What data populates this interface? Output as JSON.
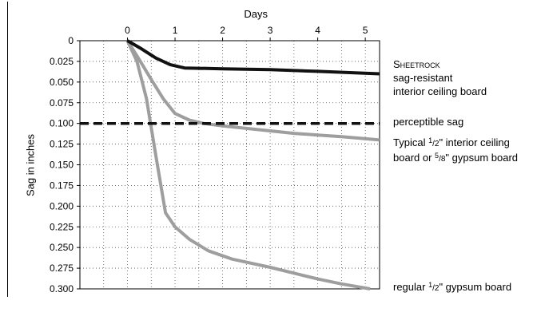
{
  "chart_data": {
    "type": "line",
    "xlabel": "Days",
    "ylabel": "Sag in inches",
    "x_ticks": [
      "0",
      "1",
      "2",
      "3",
      "4",
      "5"
    ],
    "y_ticks": [
      "0",
      "0.025",
      "0.050",
      "0.075",
      "0.100",
      "0.125",
      "0.150",
      "0.175",
      "0.200",
      "0.225",
      "0.250",
      "0.275",
      "0.300"
    ],
    "xlim": [
      -1.0,
      5.3
    ],
    "ylim": [
      0,
      0.3
    ],
    "y_inverted": true,
    "grid": "dotted",
    "x_axis_position": "top",
    "series": [
      {
        "label_lines": [
          "Sheetrock",
          "sag-resistant",
          "interior ceiling board"
        ],
        "color": "#111111",
        "style": "solid",
        "x": [
          0,
          0.3,
          0.6,
          0.9,
          1.2,
          2,
          3,
          4,
          5.3
        ],
        "y": [
          0,
          0.01,
          0.021,
          0.029,
          0.033,
          0.034,
          0.035,
          0.037,
          0.04
        ]
      },
      {
        "label_lines": [
          "perceptible sag"
        ],
        "color": "#111111",
        "style": "dashed",
        "x": [
          -1.0,
          5.3
        ],
        "y": [
          0.1,
          0.1
        ]
      },
      {
        "label_lines": [
          "Typical 1/2\" interior ceiling",
          "board or 5/8\" gypsum board"
        ],
        "color": "#9e9e9e",
        "style": "solid",
        "x": [
          0,
          0.25,
          0.5,
          0.75,
          1.0,
          1.3,
          1.6,
          2,
          2.5,
          3,
          3.5,
          4,
          4.5,
          5.3
        ],
        "y": [
          0,
          0.023,
          0.047,
          0.07,
          0.088,
          0.096,
          0.1,
          0.103,
          0.106,
          0.109,
          0.112,
          0.114,
          0.116,
          0.12
        ]
      },
      {
        "label_lines": [
          "regular 1/2\" gypsum board"
        ],
        "color": "#9e9e9e",
        "style": "solid",
        "x": [
          0,
          0.2,
          0.4,
          0.6,
          0.8,
          1.0,
          1.3,
          1.7,
          2.2,
          3,
          3.5,
          4,
          4.5,
          5.1
        ],
        "y": [
          0,
          0.025,
          0.07,
          0.14,
          0.208,
          0.225,
          0.24,
          0.254,
          0.264,
          0.274,
          0.281,
          0.288,
          0.294,
          0.3
        ]
      }
    ]
  },
  "labels": {
    "sheetrock_brand": "Sheetrock",
    "sheetrock_line2": "sag-resistant",
    "sheetrock_line3": "interior ceiling board",
    "perceptible": "perceptible sag",
    "typical_a": "Typical ",
    "typical_frac_num": "1",
    "typical_frac_den": "/2",
    "typical_b": "\" interior ceiling",
    "typical_c": "board or ",
    "typical_frac2_num": "5",
    "typical_frac2_den": "/8",
    "typical_d": "\" gypsum board",
    "regular_a": "regular ",
    "regular_frac_num": "1",
    "regular_frac_den": "/2",
    "regular_b": "\" gypsum board"
  }
}
